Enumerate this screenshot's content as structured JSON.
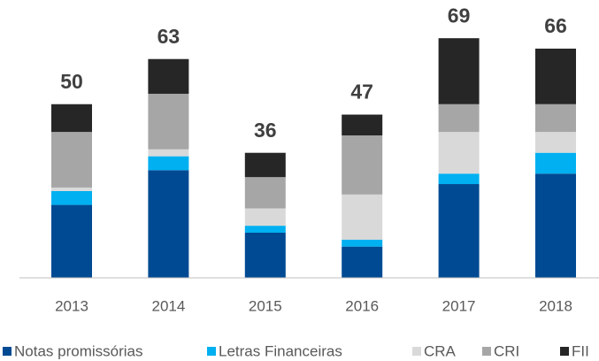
{
  "chart_data": {
    "type": "stacked_bar",
    "categories": [
      "2013",
      "2014",
      "2015",
      "2016",
      "2017",
      "2018"
    ],
    "totals": [
      50,
      63,
      36,
      47,
      69,
      66
    ],
    "series": [
      {
        "name": "Notas promissórias",
        "color": "#004A93",
        "values": [
          21,
          31,
          13,
          9,
          27,
          30
        ]
      },
      {
        "name": "Letras Financeiras",
        "color": "#00B0F0",
        "values": [
          4,
          4,
          2,
          2,
          3,
          6
        ]
      },
      {
        "name": "CRA",
        "color": "#D9D9D9",
        "values": [
          1,
          2,
          5,
          13,
          12,
          6
        ]
      },
      {
        "name": "CRI",
        "color": "#A6A6A6",
        "values": [
          16,
          16,
          9,
          17,
          8,
          8
        ]
      },
      {
        "name": "FII",
        "color": "#262626",
        "values": [
          8,
          10,
          7,
          6,
          19,
          16
        ]
      }
    ],
    "ylim": [
      0,
      80
    ]
  }
}
